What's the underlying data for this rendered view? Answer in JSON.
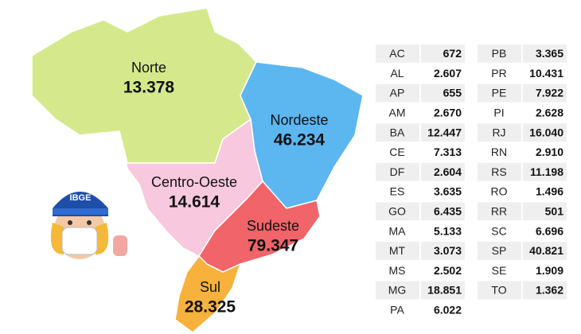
{
  "badge": "IBGE",
  "regions": [
    {
      "name": "Norte",
      "value": "13.378"
    },
    {
      "name": "Nordeste",
      "value": "46.234"
    },
    {
      "name": "Centro-Oeste",
      "value": "14.614"
    },
    {
      "name": "Sudeste",
      "value": "79.347"
    },
    {
      "name": "Sul",
      "value": "28.325"
    }
  ],
  "table": {
    "left": [
      [
        "AC",
        "672"
      ],
      [
        "AL",
        "2.607"
      ],
      [
        "AP",
        "655"
      ],
      [
        "AM",
        "2.670"
      ],
      [
        "BA",
        "12.447"
      ],
      [
        "CE",
        "7.313"
      ],
      [
        "DF",
        "2.604"
      ],
      [
        "ES",
        "3.635"
      ],
      [
        "GO",
        "6.435"
      ],
      [
        "MA",
        "5.133"
      ],
      [
        "MT",
        "3.073"
      ],
      [
        "MS",
        "2.502"
      ],
      [
        "MG",
        "18.851"
      ],
      [
        "PA",
        "6.022"
      ]
    ],
    "right": [
      [
        "PB",
        "3.365"
      ],
      [
        "PR",
        "10.431"
      ],
      [
        "PE",
        "7.922"
      ],
      [
        "PI",
        "2.628"
      ],
      [
        "RJ",
        "16.040"
      ],
      [
        "RN",
        "2.910"
      ],
      [
        "RS",
        "11.198"
      ],
      [
        "RO",
        "1.496"
      ],
      [
        "RR",
        "501"
      ],
      [
        "SC",
        "6.696"
      ],
      [
        "SP",
        "40.821"
      ],
      [
        "SE",
        "1.909"
      ],
      [
        "TO",
        "1.362"
      ]
    ]
  }
}
